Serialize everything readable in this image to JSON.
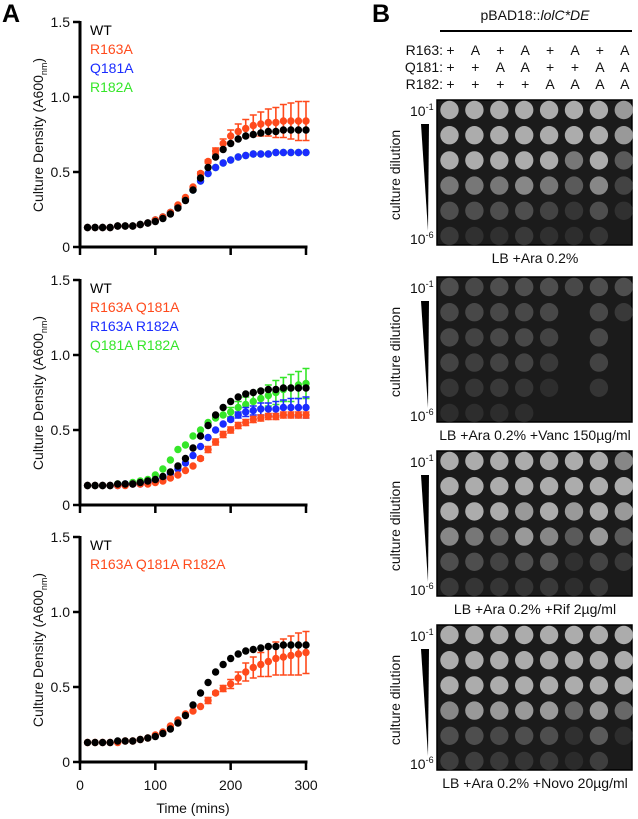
{
  "figure": {
    "panel_labels": [
      "A",
      "B"
    ]
  },
  "chart_data": [
    {
      "type": "scatter",
      "title": "",
      "xlabel": "",
      "ylabel_main": "Culture Density (A600",
      "ylabel_sub": "nm",
      "ylabel_end": ")",
      "xlim": [
        0,
        300
      ],
      "ylim": [
        0,
        1.5
      ],
      "xticks": [
        0,
        100,
        200,
        300
      ],
      "xtick_labels": [],
      "yticks": [
        0,
        0.5,
        1.0,
        1.5
      ],
      "ytick_labels": [
        "0",
        "0.5",
        "1.0",
        "1.5"
      ],
      "grid": false,
      "legend_position": "top-left",
      "x": [
        10,
        20,
        30,
        40,
        50,
        60,
        70,
        80,
        90,
        100,
        110,
        120,
        130,
        140,
        150,
        160,
        170,
        180,
        190,
        200,
        210,
        220,
        230,
        240,
        250,
        260,
        270,
        280,
        290,
        300
      ],
      "series": [
        {
          "name": "WT",
          "color": "#000000",
          "values": [
            0.13,
            0.13,
            0.13,
            0.13,
            0.14,
            0.14,
            0.14,
            0.15,
            0.16,
            0.17,
            0.19,
            0.22,
            0.26,
            0.31,
            0.38,
            0.46,
            0.53,
            0.6,
            0.65,
            0.69,
            0.72,
            0.74,
            0.75,
            0.76,
            0.77,
            0.77,
            0.78,
            0.78,
            0.78,
            0.78
          ],
          "sd": [
            0,
            0,
            0,
            0,
            0,
            0,
            0,
            0,
            0,
            0,
            0,
            0,
            0,
            0,
            0,
            0,
            0,
            0,
            0,
            0,
            0,
            0,
            0,
            0,
            0,
            0,
            0,
            0,
            0,
            0
          ]
        },
        {
          "name": "R163A",
          "color": "#ff4a1c",
          "values": [
            0.13,
            0.13,
            0.13,
            0.13,
            0.14,
            0.14,
            0.14,
            0.15,
            0.16,
            0.18,
            0.2,
            0.23,
            0.28,
            0.33,
            0.4,
            0.49,
            0.57,
            0.64,
            0.69,
            0.74,
            0.77,
            0.79,
            0.81,
            0.82,
            0.83,
            0.83,
            0.84,
            0.84,
            0.84,
            0.84
          ],
          "sd": [
            0,
            0,
            0,
            0,
            0,
            0,
            0,
            0,
            0,
            0,
            0,
            0,
            0,
            0,
            0,
            0.01,
            0.01,
            0.02,
            0.03,
            0.04,
            0.05,
            0.06,
            0.07,
            0.08,
            0.09,
            0.1,
            0.11,
            0.12,
            0.13,
            0.13
          ]
        },
        {
          "name": "Q181A",
          "color": "#1a2cff",
          "values": [
            0.13,
            0.13,
            0.13,
            0.13,
            0.14,
            0.14,
            0.14,
            0.15,
            0.16,
            0.18,
            0.2,
            0.23,
            0.27,
            0.32,
            0.38,
            0.44,
            0.49,
            0.53,
            0.56,
            0.58,
            0.6,
            0.61,
            0.62,
            0.62,
            0.62,
            0.63,
            0.63,
            0.63,
            0.63,
            0.63
          ],
          "sd": [
            0,
            0,
            0,
            0,
            0,
            0,
            0,
            0,
            0,
            0,
            0,
            0,
            0,
            0,
            0,
            0,
            0,
            0,
            0,
            0,
            0,
            0,
            0,
            0,
            0,
            0,
            0,
            0,
            0,
            0
          ]
        },
        {
          "name": "R182A",
          "color": "#35e629",
          "values": [
            0.13,
            0.13,
            0.13,
            0.13,
            0.14,
            0.14,
            0.14,
            0.15,
            0.16,
            0.18,
            0.2,
            0.23,
            0.27,
            0.32,
            0.38,
            0.44,
            0.49,
            0.53,
            0.56,
            0.58,
            0.6,
            0.61,
            0.62,
            0.62,
            0.62,
            0.63,
            0.63,
            0.63,
            0.63,
            0.63
          ],
          "sd": [
            0,
            0,
            0,
            0,
            0,
            0,
            0,
            0,
            0,
            0,
            0,
            0,
            0,
            0,
            0,
            0,
            0,
            0,
            0,
            0,
            0,
            0,
            0,
            0,
            0,
            0,
            0,
            0,
            0,
            0
          ]
        }
      ]
    },
    {
      "type": "scatter",
      "title": "",
      "xlabel": "",
      "ylabel_main": "Culture Density (A600",
      "ylabel_sub": "nm",
      "ylabel_end": ")",
      "xlim": [
        0,
        300
      ],
      "ylim": [
        0,
        1.5
      ],
      "xticks": [
        0,
        100,
        200,
        300
      ],
      "xtick_labels": [],
      "yticks": [
        0,
        0.5,
        1.0,
        1.5
      ],
      "ytick_labels": [
        "0",
        "0.5",
        "1.0",
        "1.5"
      ],
      "grid": false,
      "legend_position": "top-left",
      "x": [
        10,
        20,
        30,
        40,
        50,
        60,
        70,
        80,
        90,
        100,
        110,
        120,
        130,
        140,
        150,
        160,
        170,
        180,
        190,
        200,
        210,
        220,
        230,
        240,
        250,
        260,
        270,
        280,
        290,
        300
      ],
      "series": [
        {
          "name": "WT",
          "color": "#000000",
          "values": [
            0.13,
            0.13,
            0.13,
            0.13,
            0.14,
            0.14,
            0.14,
            0.15,
            0.16,
            0.17,
            0.19,
            0.22,
            0.26,
            0.31,
            0.38,
            0.46,
            0.53,
            0.6,
            0.65,
            0.69,
            0.72,
            0.74,
            0.75,
            0.76,
            0.77,
            0.77,
            0.78,
            0.78,
            0.78,
            0.78
          ],
          "sd": [
            0,
            0,
            0,
            0,
            0,
            0,
            0,
            0,
            0,
            0,
            0,
            0,
            0,
            0,
            0,
            0,
            0,
            0,
            0,
            0,
            0,
            0,
            0,
            0,
            0,
            0,
            0,
            0,
            0,
            0
          ]
        },
        {
          "name": "R163A Q181A",
          "color": "#ff4a1c",
          "values": [
            0.13,
            0.13,
            0.13,
            0.13,
            0.13,
            0.13,
            0.14,
            0.14,
            0.14,
            0.15,
            0.16,
            0.18,
            0.2,
            0.23,
            0.26,
            0.31,
            0.37,
            0.42,
            0.47,
            0.5,
            0.53,
            0.55,
            0.57,
            0.58,
            0.59,
            0.59,
            0.6,
            0.6,
            0.6,
            0.6
          ],
          "sd": [
            0,
            0,
            0,
            0,
            0,
            0,
            0,
            0,
            0,
            0,
            0,
            0,
            0,
            0,
            0,
            0.01,
            0.02,
            0.02,
            0.02,
            0.02,
            0.02,
            0.02,
            0.02,
            0.02,
            0.02,
            0.02,
            0.02,
            0.02,
            0.02,
            0.02
          ]
        },
        {
          "name": "R163A R182A",
          "color": "#1a2cff",
          "values": [
            0.13,
            0.13,
            0.13,
            0.13,
            0.13,
            0.14,
            0.14,
            0.14,
            0.15,
            0.16,
            0.18,
            0.21,
            0.24,
            0.28,
            0.33,
            0.39,
            0.45,
            0.5,
            0.54,
            0.57,
            0.6,
            0.62,
            0.63,
            0.64,
            0.64,
            0.64,
            0.65,
            0.65,
            0.65,
            0.65
          ],
          "sd": [
            0,
            0,
            0,
            0,
            0,
            0,
            0,
            0,
            0,
            0,
            0,
            0,
            0,
            0,
            0,
            0,
            0,
            0,
            0,
            0.01,
            0.02,
            0.03,
            0.03,
            0.04,
            0.04,
            0.05,
            0.05,
            0.06,
            0.06,
            0.07
          ]
        },
        {
          "name": "Q181A R182A",
          "color": "#35e629",
          "values": [
            0.13,
            0.13,
            0.13,
            0.13,
            0.14,
            0.14,
            0.15,
            0.16,
            0.17,
            0.2,
            0.24,
            0.3,
            0.37,
            0.4,
            0.46,
            0.5,
            0.55,
            0.58,
            0.6,
            0.62,
            0.65,
            0.67,
            0.69,
            0.71,
            0.73,
            0.75,
            0.77,
            0.78,
            0.8,
            0.81
          ],
          "sd": [
            0,
            0,
            0,
            0,
            0,
            0,
            0,
            0,
            0,
            0,
            0,
            0,
            0,
            0,
            0,
            0,
            0,
            0,
            0,
            0.03,
            0.04,
            0.05,
            0.06,
            0.06,
            0.07,
            0.08,
            0.08,
            0.09,
            0.09,
            0.1
          ]
        }
      ]
    },
    {
      "type": "scatter",
      "title": "",
      "xlabel": "Time (mins)",
      "ylabel_main": "Culture Density (A600",
      "ylabel_sub": "nm",
      "ylabel_end": ")",
      "xlim": [
        0,
        300
      ],
      "ylim": [
        0,
        1.5
      ],
      "xticks": [
        0,
        100,
        200,
        300
      ],
      "xtick_labels": [
        "0",
        "100",
        "200",
        "300"
      ],
      "yticks": [
        0,
        0.5,
        1.0,
        1.5
      ],
      "ytick_labels": [
        "0",
        "0.5",
        "1.0",
        "1.5"
      ],
      "grid": false,
      "legend_position": "top-left",
      "x": [
        10,
        20,
        30,
        40,
        50,
        60,
        70,
        80,
        90,
        100,
        110,
        120,
        130,
        140,
        150,
        160,
        170,
        180,
        190,
        200,
        210,
        220,
        230,
        240,
        250,
        260,
        270,
        280,
        290,
        300
      ],
      "series": [
        {
          "name": "WT",
          "color": "#000000",
          "values": [
            0.13,
            0.13,
            0.13,
            0.13,
            0.14,
            0.14,
            0.14,
            0.15,
            0.16,
            0.17,
            0.19,
            0.22,
            0.26,
            0.31,
            0.38,
            0.46,
            0.53,
            0.6,
            0.65,
            0.69,
            0.72,
            0.74,
            0.75,
            0.76,
            0.77,
            0.77,
            0.78,
            0.78,
            0.78,
            0.78
          ],
          "sd": [
            0,
            0,
            0,
            0,
            0,
            0,
            0,
            0,
            0,
            0,
            0,
            0,
            0,
            0,
            0,
            0,
            0,
            0,
            0,
            0,
            0,
            0,
            0,
            0,
            0,
            0,
            0,
            0,
            0,
            0
          ]
        },
        {
          "name": "R163A Q181A R182A",
          "color": "#ff4a1c",
          "values": [
            0.13,
            0.13,
            0.13,
            0.13,
            0.13,
            0.14,
            0.14,
            0.15,
            0.16,
            0.18,
            0.2,
            0.24,
            0.28,
            0.32,
            0.34,
            0.37,
            0.41,
            0.46,
            0.49,
            0.52,
            0.56,
            0.6,
            0.63,
            0.65,
            0.67,
            0.69,
            0.7,
            0.71,
            0.72,
            0.73
          ],
          "sd": [
            0,
            0,
            0,
            0,
            0,
            0,
            0,
            0,
            0,
            0,
            0,
            0,
            0,
            0,
            0,
            0,
            0.02,
            0.01,
            0.02,
            0.03,
            0.04,
            0.06,
            0.07,
            0.08,
            0.1,
            0.11,
            0.12,
            0.13,
            0.14,
            0.14
          ]
        }
      ]
    }
  ],
  "plates": {
    "title_prefix": "pBAD18::",
    "title_italic": "lolC*DE",
    "genotype_rows": [
      {
        "label": "R163:",
        "values": [
          "+",
          "A",
          "+",
          "A",
          "+",
          "A",
          "+",
          "A"
        ]
      },
      {
        "label": "Q181:",
        "values": [
          "+",
          "+",
          "A",
          "A",
          "+",
          "+",
          "A",
          "A"
        ]
      },
      {
        "label": "R182:",
        "values": [
          "+",
          "+",
          "+",
          "+",
          "A",
          "A",
          "A",
          "A"
        ]
      }
    ],
    "axis_label": "culture dilution",
    "dilution_top": {
      "base": "10",
      "exp": "-1"
    },
    "dilution_bottom": {
      "base": "10",
      "exp": "-6"
    },
    "conditions": [
      {
        "caption": "LB +Ara 0.2%",
        "growth": [
          [
            1,
            1,
            1,
            1,
            1,
            1,
            1,
            0.9
          ],
          [
            1,
            1,
            1,
            1,
            1,
            1,
            1,
            0.9
          ],
          [
            1,
            1,
            1,
            1,
            1,
            0.7,
            1,
            0.5
          ],
          [
            0.7,
            0.7,
            0.7,
            0.8,
            0.7,
            0.5,
            0.8,
            0.3
          ],
          [
            0.4,
            0.4,
            0.4,
            0.4,
            0.3,
            0.15,
            0.4,
            0.1
          ],
          [
            0.2,
            0.1,
            0.1,
            0.2,
            0.1,
            0.05,
            0.15,
            0
          ]
        ]
      },
      {
        "caption": "LB +Ara 0.2% +Vanc 150µg/ml",
        "growth": [
          [
            0.4,
            0.35,
            0.4,
            0.4,
            0.4,
            0.35,
            0.4,
            0.4
          ],
          [
            0.35,
            0.35,
            0.35,
            0.35,
            0.35,
            0,
            0.35,
            0.2
          ],
          [
            0.35,
            0.3,
            0.35,
            0.35,
            0.3,
            0,
            0.35,
            0
          ],
          [
            0.3,
            0.25,
            0.3,
            0.3,
            0.2,
            0,
            0.3,
            0
          ],
          [
            0.15,
            0.15,
            0.2,
            0.15,
            0.05,
            0,
            0.15,
            0
          ],
          [
            0.05,
            0.05,
            0.05,
            0.05,
            0,
            0,
            0,
            0
          ]
        ]
      },
      {
        "caption": "LB +Ara 0.2% +Rif 2µg/ml",
        "growth": [
          [
            1,
            1,
            1,
            1,
            1,
            1,
            1,
            0.8
          ],
          [
            1,
            1,
            1,
            1,
            1,
            1,
            1,
            1
          ],
          [
            1,
            1,
            1,
            0.9,
            1,
            0.9,
            1,
            0.9
          ],
          [
            0.8,
            0.7,
            0.6,
            0.9,
            0.8,
            0.5,
            0.9,
            0.5
          ],
          [
            0.4,
            0.4,
            0.3,
            0.4,
            0.5,
            0.1,
            0.3,
            0.2
          ],
          [
            0.2,
            0.15,
            0.15,
            0.15,
            0.2,
            0.05,
            0.2,
            0
          ]
        ]
      },
      {
        "caption": "LB +Ara 0.2% +Novo 20µg/ml",
        "growth": [
          [
            1,
            1,
            1,
            1,
            1,
            1,
            1,
            1
          ],
          [
            1,
            1,
            1,
            1,
            1,
            1,
            1,
            1
          ],
          [
            1,
            1,
            1,
            1,
            1,
            1,
            1,
            1
          ],
          [
            0.8,
            0.9,
            0.9,
            0.9,
            0.9,
            0.6,
            0.9,
            0.6
          ],
          [
            0.4,
            0.4,
            0.35,
            0.4,
            0.4,
            0.1,
            0.5,
            0.05
          ],
          [
            0.25,
            0.25,
            0.2,
            0.15,
            0.2,
            0.02,
            0.25,
            0
          ]
        ]
      }
    ]
  }
}
